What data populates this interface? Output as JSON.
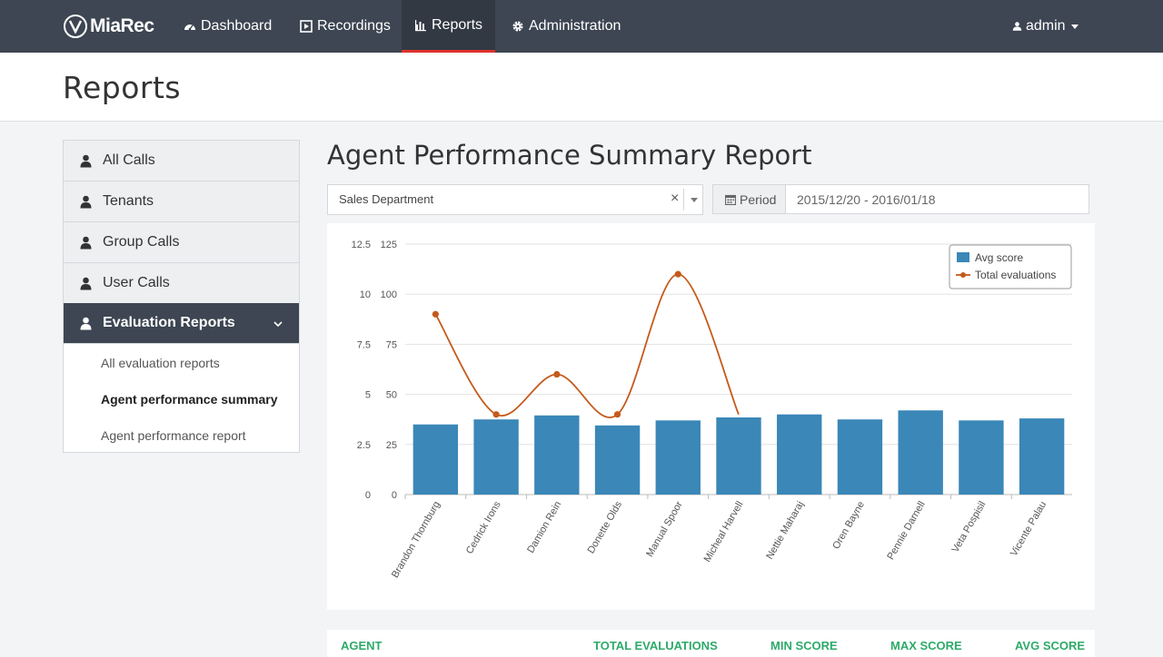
{
  "brand": {
    "name": "MiaRec"
  },
  "nav": {
    "dashboard": "Dashboard",
    "recordings": "Recordings",
    "reports": "Reports",
    "administration": "Administration",
    "user": "admin"
  },
  "page": {
    "title": "Reports"
  },
  "sidebar": {
    "items": [
      "All Calls",
      "Tenants",
      "Group Calls",
      "User Calls",
      "Evaluation Reports"
    ],
    "subitems": [
      "All evaluation reports",
      "Agent performance summary",
      "Agent performance report"
    ]
  },
  "report": {
    "title": "Agent Performance Summary Report",
    "department": "Sales Department",
    "clear_symbol": "×",
    "period_label": "Period",
    "period_value": "2015/12/20 - 2016/01/18"
  },
  "chart_data": {
    "type": "bar",
    "categories": [
      "Brandon Thornburg",
      "Cedrick Irons",
      "Damion Rein",
      "Donette Olds",
      "Manual Spoor",
      "Micheal Harvell",
      "Nettie Maharaj",
      "Oren Bayne",
      "Pennie Darnell",
      "Veta Pospisil",
      "Vicente Palau"
    ],
    "series": [
      {
        "name": "Avg score",
        "type": "bar",
        "axis": "left",
        "color": "#3a87b8",
        "values": [
          3.5,
          3.75,
          3.95,
          3.45,
          3.7,
          3.85,
          4.0,
          3.75,
          4.2,
          3.7,
          3.8
        ]
      },
      {
        "name": "Total evaluations",
        "type": "line",
        "axis": "right",
        "color": "#c45a1b",
        "values": [
          90,
          40,
          60,
          40,
          110,
          40,
          null,
          null,
          null,
          null,
          null
        ]
      }
    ],
    "y_left": {
      "min": 0,
      "max": 12.5,
      "ticks": [
        "0",
        "2.5",
        "5",
        "7.5",
        "10",
        "12.5"
      ]
    },
    "y_right": {
      "min": 0,
      "max": 125,
      "ticks": [
        "0",
        "25",
        "50",
        "75",
        "100",
        "125"
      ]
    },
    "grid": true,
    "legend": "top-right"
  },
  "table": {
    "headers": [
      "AGENT",
      "TOTAL EVALUATIONS",
      "MIN SCORE",
      "MAX SCORE",
      "AVG SCORE"
    ]
  }
}
